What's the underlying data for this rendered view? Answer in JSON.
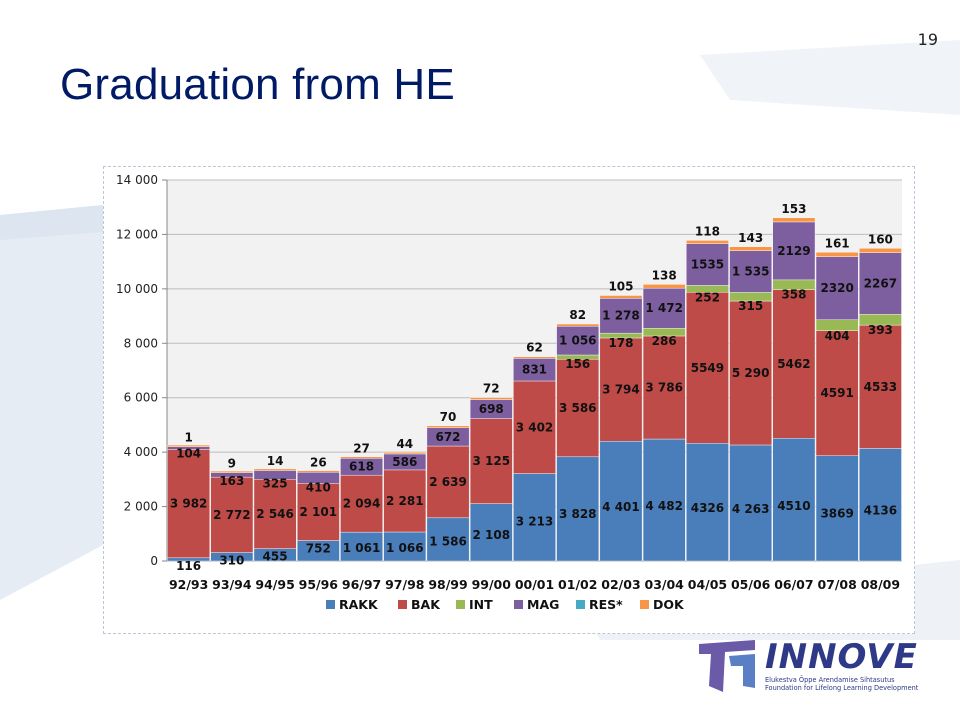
{
  "slide": {
    "number": "19",
    "title": "Graduation from HE"
  },
  "logo": {
    "name": "INNOVE",
    "line1": "Elukestva Õppe Arendamise Sihtasutus",
    "line2": "Foundation for Lifelong Learning Development",
    "colors": {
      "navy": "#2e3a87",
      "purple": "#6a5aa8",
      "blue": "#5b7fc4"
    }
  },
  "chart_data": {
    "type": "bar",
    "stacked": true,
    "title": "",
    "xlabel": "",
    "ylabel": "",
    "ylim": [
      0,
      14000
    ],
    "yticks": [
      0,
      2000,
      4000,
      6000,
      8000,
      10000,
      12000,
      14000
    ],
    "ytick_labels": [
      "0",
      "2 000",
      "4 000",
      "6 000",
      "8 000",
      "10 000",
      "12 000",
      "14 000"
    ],
    "grid": true,
    "legend_position": "bottom",
    "categories": [
      "92/93",
      "93/94",
      "94/95",
      "95/96",
      "96/97",
      "97/98",
      "98/99",
      "99/00",
      "00/01",
      "01/02",
      "02/03",
      "03/04",
      "04/05",
      "05/06",
      "06/07",
      "07/08",
      "08/09"
    ],
    "series": [
      {
        "name": "RAKK",
        "color": "#4a7ebb",
        "values": [
          116,
          310,
          455,
          752,
          1061,
          1066,
          1586,
          2108,
          3213,
          3828,
          4401,
          4482,
          4326,
          4263,
          4510,
          3869,
          4136
        ],
        "labels": [
          "116",
          "310",
          "455",
          "752",
          "1 061",
          "1 066",
          "1 586",
          "2 108",
          "3 213",
          "3 828",
          "4 401",
          "4 482",
          "4326",
          "4 263",
          "4510",
          "3869",
          "4136"
        ]
      },
      {
        "name": "BAK",
        "color": "#be4b48",
        "values": [
          3982,
          2772,
          2546,
          2101,
          2094,
          2281,
          2639,
          3125,
          3402,
          3586,
          3794,
          3786,
          5549,
          5290,
          5462,
          4591,
          4533
        ],
        "labels": [
          "3 982",
          "2 772",
          "2 546",
          "2 101",
          "2 094",
          "2 281",
          "2 639",
          "3 125",
          "3 402",
          "3 586",
          "3 794",
          "3 786",
          "5549",
          "5 290",
          "5462",
          "4591",
          "4533"
        ]
      },
      {
        "name": "INT",
        "color": "#98b954",
        "values": [
          0,
          0,
          0,
          0,
          0,
          0,
          0,
          0,
          0,
          156,
          178,
          286,
          252,
          315,
          358,
          404,
          393
        ],
        "labels": [
          "",
          "",
          "",
          "",
          "",
          "",
          "",
          "",
          "",
          "156",
          "178",
          "286",
          "252",
          "315",
          "358",
          "404",
          "393"
        ]
      },
      {
        "name": "MAG",
        "color": "#7d5fa0",
        "values": [
          104,
          163,
          325,
          410,
          618,
          586,
          672,
          698,
          831,
          1056,
          1278,
          1472,
          1535,
          1535,
          2129,
          2320,
          2267
        ],
        "labels": [
          "104",
          "163",
          "325",
          "410",
          "618",
          "586",
          "672",
          "698",
          "831",
          "1 056",
          "1 278",
          "1 472",
          "1535",
          "1 535",
          "2129",
          "2320",
          "2267"
        ]
      },
      {
        "name": "RES*",
        "color": "#46aac5",
        "values": [
          0,
          0,
          0,
          0,
          0,
          0,
          0,
          0,
          0,
          0,
          0,
          0,
          0,
          0,
          0,
          0,
          0
        ],
        "labels": [
          "",
          "",
          "",
          "",
          "",
          "",
          "",
          "",
          "",
          "",
          "",
          "",
          "",
          "",
          "",
          "",
          ""
        ]
      },
      {
        "name": "DOK",
        "color": "#f79646",
        "values": [
          1,
          9,
          14,
          26,
          27,
          44,
          70,
          72,
          62,
          82,
          105,
          138,
          118,
          143,
          153,
          161,
          160
        ],
        "labels": [
          "1",
          "9",
          "14",
          "26",
          "27",
          "44",
          "70",
          "72",
          "62",
          "82",
          "105",
          "138",
          "118",
          "143",
          "153",
          "161",
          "160"
        ]
      }
    ]
  }
}
